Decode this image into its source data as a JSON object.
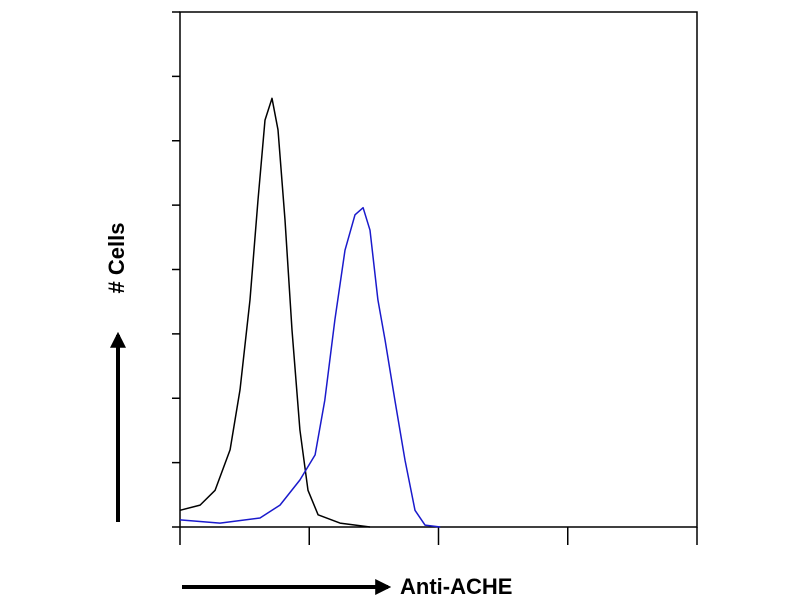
{
  "chart_data": {
    "type": "line",
    "ylabel": "# Cells",
    "xlabel": "Anti-ACHE",
    "xscale": "log",
    "xlim": [
      1,
      10000
    ],
    "xticks": [
      1,
      10,
      100,
      1000,
      10000
    ],
    "ylim": [
      0,
      8
    ],
    "yticks": [
      0,
      1,
      2,
      3,
      4,
      5,
      6,
      7,
      8
    ],
    "tick_labels": false,
    "grid": false,
    "series": [
      {
        "color": "#000000",
        "x": [
          1,
          1.43,
          1.87,
          2.44,
          2.91,
          3.48,
          4.01,
          4.55,
          5.15,
          5.73,
          6.49,
          7.36,
          8.47,
          9.78,
          11.7,
          17.3,
          29.5
        ],
        "values": [
          0.26,
          0.34,
          0.57,
          1.2,
          2.13,
          3.53,
          5.08,
          6.32,
          6.66,
          6.17,
          4.77,
          3.06,
          1.51,
          0.57,
          0.19,
          0.06,
          0
        ]
      },
      {
        "color": "#1a1acc",
        "x": [
          1,
          2.04,
          4.16,
          5.94,
          8.47,
          11.1,
          13.2,
          15.8,
          18.9,
          22.6,
          26.1,
          29.5,
          34.0,
          38.6,
          46.0,
          55.1,
          65.8,
          78.6,
          103
        ],
        "values": [
          0.11,
          0.06,
          0.14,
          0.34,
          0.73,
          1.12,
          1.97,
          3.22,
          4.3,
          4.85,
          4.96,
          4.61,
          3.53,
          2.9,
          1.97,
          1.04,
          0.26,
          0.03,
          0
        ]
      }
    ]
  }
}
